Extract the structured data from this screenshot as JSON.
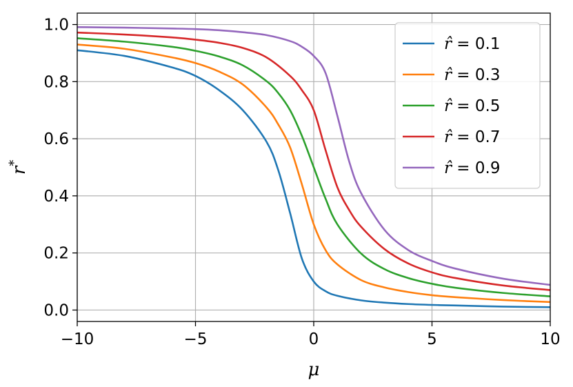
{
  "chart_data": {
    "type": "line",
    "xlabel": "μ",
    "ylabel": "r*",
    "xlim": [
      -10,
      10
    ],
    "ylim": [
      -0.04,
      1.04
    ],
    "xticks": [
      -10,
      -5,
      0,
      5,
      10
    ],
    "xtick_labels": [
      "−10",
      "−5",
      "0",
      "5",
      "10"
    ],
    "yticks": [
      0.0,
      0.2,
      0.4,
      0.6,
      0.8,
      1.0
    ],
    "ytick_labels": [
      "0.0",
      "0.2",
      "0.4",
      "0.6",
      "0.8",
      "1.0"
    ],
    "grid": true,
    "legend_position": "top-right",
    "series": [
      {
        "name": "r̂ = 0.1",
        "color": "#1f77b4",
        "x": [
          -10,
          -8,
          -6,
          -5,
          -4,
          -3,
          -2,
          -1.5,
          -1,
          -0.5,
          0,
          0.5,
          1,
          2,
          3,
          4,
          5,
          6,
          8,
          10
        ],
        "y": [
          0.91,
          0.89,
          0.85,
          0.82,
          0.77,
          0.7,
          0.59,
          0.49,
          0.34,
          0.18,
          0.1,
          0.066,
          0.05,
          0.034,
          0.026,
          0.021,
          0.018,
          0.016,
          0.012,
          0.01
        ]
      },
      {
        "name": "r̂ = 0.3",
        "color": "#ff7f0e",
        "x": [
          -10,
          -8,
          -6,
          -5,
          -4,
          -3,
          -2,
          -1.5,
          -1,
          -0.5,
          0,
          0.5,
          1,
          2,
          3,
          4,
          5,
          6,
          8,
          10
        ],
        "y": [
          0.93,
          0.915,
          0.885,
          0.865,
          0.835,
          0.79,
          0.71,
          0.65,
          0.57,
          0.44,
          0.3,
          0.21,
          0.16,
          0.105,
          0.079,
          0.063,
          0.052,
          0.045,
          0.035,
          0.028
        ]
      },
      {
        "name": "r̂ = 0.5",
        "color": "#2ca02c",
        "x": [
          -10,
          -8,
          -6,
          -5,
          -4,
          -3,
          -2,
          -1.5,
          -1,
          -0.5,
          0,
          0.5,
          1,
          2,
          3,
          4,
          5,
          6,
          8,
          10
        ],
        "y": [
          0.952,
          0.94,
          0.922,
          0.908,
          0.888,
          0.857,
          0.802,
          0.76,
          0.7,
          0.61,
          0.5,
          0.39,
          0.3,
          0.198,
          0.143,
          0.112,
          0.092,
          0.078,
          0.06,
          0.048
        ]
      },
      {
        "name": "r̂ = 0.7",
        "color": "#d62728",
        "x": [
          -10,
          -8,
          -6,
          -5,
          -4,
          -3,
          -2,
          -1,
          -0.5,
          0,
          0.5,
          1,
          1.5,
          2,
          3,
          4,
          5,
          6,
          8,
          10
        ],
        "y": [
          0.972,
          0.965,
          0.955,
          0.947,
          0.936,
          0.918,
          0.885,
          0.82,
          0.77,
          0.7,
          0.56,
          0.43,
          0.35,
          0.292,
          0.213,
          0.163,
          0.132,
          0.112,
          0.086,
          0.07
        ]
      },
      {
        "name": "r̂ = 0.9",
        "color": "#9467bd",
        "x": [
          -10,
          -8,
          -6,
          -5,
          -4,
          -3,
          -2,
          -1,
          -0.5,
          0,
          0.5,
          1,
          1.5,
          2,
          3,
          4,
          5,
          6,
          8,
          10
        ],
        "y": [
          0.991,
          0.989,
          0.986,
          0.984,
          0.98,
          0.973,
          0.963,
          0.942,
          0.922,
          0.89,
          0.83,
          0.68,
          0.52,
          0.41,
          0.28,
          0.21,
          0.172,
          0.145,
          0.11,
          0.088
        ]
      }
    ]
  }
}
